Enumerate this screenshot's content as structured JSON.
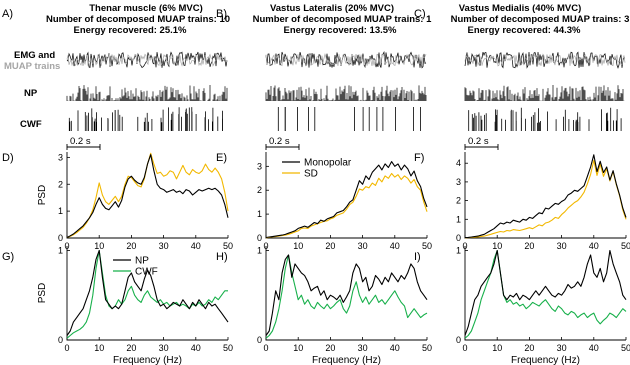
{
  "panel_letters": [
    "A)",
    "B)",
    "C)",
    "D)",
    "E)",
    "F)",
    "G)",
    "H)",
    "I)"
  ],
  "columns": [
    {
      "title": "Thenar muscle (6% MVC)",
      "trains": "Number of decomposed MUAP trains: 10",
      "energy": "Energy recovered: 25.1%"
    },
    {
      "title": "Vastus Lateralis (20% MVC)",
      "trains": "Number of decomposed MUAP trains: 1",
      "energy": "Energy recovered: 13.5%"
    },
    {
      "title": "Vastus Medialis (40% MVC)",
      "trains": "Number of decomposed MUAP trains: 3",
      "energy": "Energy recovered: 44.3%"
    }
  ],
  "row_labels": {
    "emg": "EMG and",
    "muap": "MUAP trains",
    "np": "NP",
    "cwf": "CWF"
  },
  "scale_bar_label": "0.2 s",
  "colors": {
    "black": "#000000",
    "grey": "#a6a6a6",
    "sd": "#f2b800",
    "cwf": "#18b04b"
  },
  "chart_data": [
    {
      "type": "line",
      "panel": "D)",
      "ylabel": "PSD",
      "xlabel": "",
      "xlim": [
        0,
        50
      ],
      "ylim": [
        0,
        3.2
      ],
      "yticks": [
        0,
        1,
        2,
        3
      ],
      "xticks": [
        0,
        10,
        20,
        30,
        40,
        50
      ],
      "x": [
        0,
        1,
        2,
        3,
        4,
        5,
        6,
        7,
        8,
        9,
        10,
        11,
        12,
        13,
        14,
        15,
        16,
        17,
        18,
        19,
        20,
        21,
        22,
        23,
        24,
        25,
        26,
        27,
        28,
        29,
        30,
        31,
        32,
        33,
        34,
        35,
        36,
        37,
        38,
        39,
        40,
        41,
        42,
        43,
        44,
        45,
        46,
        47,
        48,
        49,
        50
      ],
      "series": [
        {
          "name": "Monopolar",
          "color": "#000000",
          "values": [
            0.02,
            0.08,
            0.15,
            0.25,
            0.35,
            0.45,
            0.6,
            0.75,
            0.95,
            1.25,
            1.5,
            1.25,
            1.1,
            1.05,
            1.2,
            1.35,
            1.15,
            1.4,
            1.9,
            2.2,
            2.3,
            2.15,
            2.05,
            2.0,
            2.25,
            2.75,
            3.1,
            2.5,
            2.0,
            1.85,
            1.8,
            1.7,
            1.75,
            1.8,
            1.7,
            1.75,
            1.65,
            1.8,
            1.75,
            1.6,
            1.7,
            1.8,
            1.75,
            1.8,
            1.85,
            1.8,
            1.85,
            1.75,
            1.6,
            1.25,
            0.75
          ]
        },
        {
          "name": "SD",
          "color": "#f2b800",
          "values": [
            0.02,
            0.06,
            0.12,
            0.2,
            0.3,
            0.4,
            0.55,
            0.75,
            1.05,
            1.5,
            2.05,
            1.6,
            1.35,
            1.25,
            1.4,
            1.55,
            1.35,
            1.55,
            2.0,
            2.3,
            2.25,
            2.1,
            1.95,
            1.9,
            2.2,
            2.75,
            3.15,
            2.75,
            2.4,
            2.45,
            2.3,
            2.35,
            2.5,
            2.45,
            2.2,
            2.45,
            2.7,
            2.45,
            2.35,
            2.55,
            2.45,
            2.4,
            2.5,
            2.75,
            2.55,
            2.45,
            2.6,
            2.45,
            2.2,
            1.7,
            1.0
          ]
        }
      ]
    },
    {
      "type": "line",
      "panel": "E)",
      "ylabel": "",
      "xlabel": "",
      "xlim": [
        0,
        50
      ],
      "ylim": [
        0,
        3.6
      ],
      "yticks": [
        0,
        1,
        2,
        3
      ],
      "xticks": [
        0,
        10,
        20,
        30,
        40,
        50
      ],
      "legend": {
        "position": "top-left",
        "entries": [
          "Monopolar",
          "SD"
        ]
      },
      "x": [
        0,
        1,
        2,
        3,
        4,
        5,
        6,
        7,
        8,
        9,
        10,
        11,
        12,
        13,
        14,
        15,
        16,
        17,
        18,
        19,
        20,
        21,
        22,
        23,
        24,
        25,
        26,
        27,
        28,
        29,
        30,
        31,
        32,
        33,
        34,
        35,
        36,
        37,
        38,
        39,
        40,
        41,
        42,
        43,
        44,
        45,
        46,
        47,
        48,
        49,
        50
      ],
      "series": [
        {
          "name": "Monopolar",
          "color": "#000000",
          "values": [
            0.02,
            0.04,
            0.06,
            0.08,
            0.1,
            0.12,
            0.15,
            0.2,
            0.25,
            0.3,
            0.4,
            0.45,
            0.5,
            0.45,
            0.55,
            0.65,
            0.6,
            0.75,
            0.7,
            0.8,
            0.85,
            0.9,
            1.05,
            1.1,
            1.15,
            1.3,
            1.5,
            1.6,
            2.0,
            2.4,
            2.25,
            2.6,
            2.45,
            2.75,
            2.9,
            3.05,
            2.85,
            3.1,
            2.95,
            3.2,
            3.0,
            3.1,
            2.85,
            3.05,
            2.9,
            2.6,
            2.8,
            2.4,
            2.15,
            1.65,
            1.3
          ]
        },
        {
          "name": "SD",
          "color": "#f2b800",
          "values": [
            0.01,
            0.03,
            0.05,
            0.06,
            0.08,
            0.1,
            0.12,
            0.15,
            0.2,
            0.25,
            0.3,
            0.4,
            0.42,
            0.4,
            0.5,
            0.55,
            0.6,
            0.65,
            0.7,
            0.72,
            0.8,
            0.85,
            0.95,
            1.0,
            1.05,
            1.2,
            1.4,
            1.5,
            1.75,
            2.05,
            2.0,
            2.15,
            2.1,
            2.3,
            2.2,
            2.5,
            2.35,
            2.6,
            2.5,
            2.7,
            2.55,
            2.65,
            2.45,
            2.6,
            2.5,
            2.3,
            2.45,
            2.15,
            2.0,
            1.5,
            1.1
          ]
        }
      ]
    },
    {
      "type": "line",
      "panel": "F)",
      "ylabel": "",
      "xlabel": "",
      "xlim": [
        0,
        50
      ],
      "ylim": [
        0,
        4.6
      ],
      "yticks": [
        0,
        1,
        2,
        3,
        4
      ],
      "xticks": [
        0,
        10,
        20,
        30,
        40,
        50
      ],
      "x": [
        0,
        1,
        2,
        3,
        4,
        5,
        6,
        7,
        8,
        9,
        10,
        11,
        12,
        13,
        14,
        15,
        16,
        17,
        18,
        19,
        20,
        21,
        22,
        23,
        24,
        25,
        26,
        27,
        28,
        29,
        30,
        31,
        32,
        33,
        34,
        35,
        36,
        37,
        38,
        39,
        40,
        41,
        42,
        43,
        44,
        45,
        46,
        47,
        48,
        49,
        50
      ],
      "series": [
        {
          "name": "Monopolar",
          "color": "#000000",
          "values": [
            0.02,
            0.03,
            0.05,
            0.08,
            0.1,
            0.15,
            0.2,
            0.3,
            0.4,
            0.5,
            0.65,
            0.8,
            0.75,
            0.85,
            0.8,
            0.95,
            0.9,
            0.85,
            1.0,
            0.95,
            1.1,
            1.05,
            1.2,
            1.35,
            1.3,
            1.6,
            1.55,
            1.7,
            1.85,
            1.8,
            1.95,
            2.05,
            2.3,
            2.4,
            2.55,
            2.5,
            2.65,
            2.8,
            3.3,
            3.8,
            4.45,
            3.55,
            4.1,
            3.5,
            3.8,
            3.1,
            3.6,
            2.9,
            2.3,
            1.6,
            1.1
          ]
        },
        {
          "name": "SD",
          "color": "#f2b800",
          "values": [
            0.01,
            0.02,
            0.03,
            0.05,
            0.06,
            0.08,
            0.1,
            0.15,
            0.2,
            0.25,
            0.3,
            0.35,
            0.32,
            0.4,
            0.38,
            0.45,
            0.42,
            0.4,
            0.45,
            0.5,
            0.55,
            0.5,
            0.6,
            0.7,
            0.65,
            0.8,
            0.85,
            0.95,
            1.1,
            1.05,
            1.25,
            1.4,
            1.6,
            1.75,
            1.9,
            2.0,
            2.2,
            2.45,
            2.9,
            3.4,
            4.15,
            3.35,
            3.95,
            3.3,
            3.7,
            3.05,
            3.55,
            2.85,
            2.25,
            1.5,
            1.0
          ]
        }
      ]
    },
    {
      "type": "line",
      "panel": "G)",
      "ylabel": "PSD",
      "xlabel": "Frequency  (Hz)",
      "xlim": [
        0,
        50
      ],
      "ylim": [
        0,
        1.05
      ],
      "yticks": [
        0,
        1
      ],
      "xticks": [
        0,
        10,
        20,
        30,
        40,
        50
      ],
      "legend": {
        "position": "top-center",
        "entries": [
          "NP",
          "CWF"
        ]
      },
      "x": [
        0,
        1,
        2,
        3,
        4,
        5,
        6,
        7,
        8,
        9,
        10,
        11,
        12,
        13,
        14,
        15,
        16,
        17,
        18,
        19,
        20,
        21,
        22,
        23,
        24,
        25,
        26,
        27,
        28,
        29,
        30,
        31,
        32,
        33,
        34,
        35,
        36,
        37,
        38,
        39,
        40,
        41,
        42,
        43,
        44,
        45,
        46,
        47,
        48,
        49,
        50
      ],
      "series": [
        {
          "name": "NP",
          "color": "#000000",
          "values": [
            0.05,
            0.1,
            0.2,
            0.25,
            0.3,
            0.35,
            0.45,
            0.55,
            0.7,
            0.9,
            1.0,
            0.7,
            0.45,
            0.4,
            0.35,
            0.38,
            0.35,
            0.4,
            0.55,
            0.7,
            0.75,
            0.65,
            0.6,
            0.55,
            0.68,
            0.78,
            0.72,
            0.6,
            0.45,
            0.38,
            0.4,
            0.35,
            0.38,
            0.42,
            0.4,
            0.38,
            0.45,
            0.4,
            0.35,
            0.42,
            0.38,
            0.45,
            0.4,
            0.35,
            0.42,
            0.38,
            0.4,
            0.35,
            0.3,
            0.25,
            0.2
          ]
        },
        {
          "name": "CWF",
          "color": "#18b04b",
          "values": [
            0.02,
            0.05,
            0.08,
            0.1,
            0.12,
            0.15,
            0.2,
            0.3,
            0.5,
            0.8,
            1.0,
            0.75,
            0.5,
            0.38,
            0.35,
            0.38,
            0.45,
            0.4,
            0.45,
            0.55,
            0.6,
            0.5,
            0.45,
            0.42,
            0.5,
            0.55,
            0.48,
            0.45,
            0.42,
            0.45,
            0.4,
            0.42,
            0.38,
            0.4,
            0.42,
            0.38,
            0.4,
            0.38,
            0.35,
            0.4,
            0.38,
            0.42,
            0.38,
            0.4,
            0.45,
            0.42,
            0.48,
            0.45,
            0.5,
            0.55,
            0.55
          ]
        }
      ]
    },
    {
      "type": "line",
      "panel": "H)",
      "ylabel": "",
      "xlabel": "Frequency  (Hz)",
      "xlim": [
        0,
        50
      ],
      "ylim": [
        0,
        1.05
      ],
      "yticks": [
        0,
        1
      ],
      "xticks": [
        0,
        10,
        20,
        30,
        40,
        50
      ],
      "x": [
        0,
        1,
        2,
        3,
        4,
        5,
        6,
        7,
        8,
        9,
        10,
        11,
        12,
        13,
        14,
        15,
        16,
        17,
        18,
        19,
        20,
        21,
        22,
        23,
        24,
        25,
        26,
        27,
        28,
        29,
        30,
        31,
        32,
        33,
        34,
        35,
        36,
        37,
        38,
        39,
        40,
        41,
        42,
        43,
        44,
        45,
        46,
        47,
        48,
        49,
        50
      ],
      "series": [
        {
          "name": "NP",
          "color": "#000000",
          "values": [
            0.05,
            0.1,
            0.3,
            0.55,
            0.45,
            0.75,
            0.9,
            0.95,
            0.7,
            0.85,
            0.8,
            0.75,
            0.72,
            0.65,
            0.55,
            0.58,
            0.6,
            0.5,
            0.55,
            0.45,
            0.5,
            0.48,
            0.45,
            0.5,
            0.42,
            0.48,
            0.55,
            0.75,
            0.85,
            0.8,
            0.65,
            0.7,
            0.55,
            0.6,
            0.72,
            0.68,
            0.62,
            0.7,
            0.65,
            0.75,
            0.7,
            0.65,
            0.72,
            0.68,
            0.75,
            0.85,
            0.8,
            0.65,
            0.55,
            0.5,
            0.45
          ]
        },
        {
          "name": "CWF",
          "color": "#18b04b",
          "values": [
            0.02,
            0.05,
            0.1,
            0.2,
            0.35,
            0.55,
            0.8,
            0.95,
            0.75,
            0.6,
            0.45,
            0.5,
            0.4,
            0.45,
            0.38,
            0.35,
            0.42,
            0.38,
            0.35,
            0.4,
            0.35,
            0.38,
            0.42,
            0.45,
            0.35,
            0.3,
            0.38,
            0.55,
            0.65,
            0.5,
            0.42,
            0.48,
            0.4,
            0.45,
            0.5,
            0.42,
            0.45,
            0.4,
            0.45,
            0.5,
            0.55,
            0.48,
            0.42,
            0.38,
            0.25,
            0.3,
            0.35,
            0.3,
            0.25,
            0.28,
            0.3
          ]
        }
      ]
    },
    {
      "type": "line",
      "panel": "I)",
      "ylabel": "",
      "xlabel": "Frequency  (Hz)",
      "xlim": [
        0,
        50
      ],
      "ylim": [
        0,
        1.05
      ],
      "yticks": [
        0,
        1
      ],
      "xticks": [
        0,
        10,
        20,
        30,
        40,
        50
      ],
      "x": [
        0,
        1,
        2,
        3,
        4,
        5,
        6,
        7,
        8,
        9,
        10,
        11,
        12,
        13,
        14,
        15,
        16,
        17,
        18,
        19,
        20,
        21,
        22,
        23,
        24,
        25,
        26,
        27,
        28,
        29,
        30,
        31,
        32,
        33,
        34,
        35,
        36,
        37,
        38,
        39,
        40,
        41,
        42,
        43,
        44,
        45,
        46,
        47,
        48,
        49,
        50
      ],
      "series": [
        {
          "name": "NP",
          "color": "#000000",
          "values": [
            0.05,
            0.15,
            0.3,
            0.45,
            0.5,
            0.6,
            0.65,
            0.7,
            0.75,
            0.85,
            1.0,
            0.75,
            0.5,
            0.45,
            0.5,
            0.48,
            0.52,
            0.45,
            0.5,
            0.48,
            0.45,
            0.5,
            0.55,
            0.5,
            0.55,
            0.6,
            0.55,
            0.5,
            0.48,
            0.52,
            0.5,
            0.55,
            0.62,
            0.58,
            0.6,
            0.65,
            0.6,
            0.7,
            0.85,
            0.95,
            0.75,
            0.7,
            0.8,
            0.65,
            0.75,
            1.0,
            0.85,
            0.75,
            0.65,
            0.5,
            0.45
          ]
        },
        {
          "name": "CWF",
          "color": "#18b04b",
          "values": [
            0.02,
            0.05,
            0.1,
            0.2,
            0.3,
            0.45,
            0.55,
            0.65,
            0.75,
            0.9,
            1.0,
            0.75,
            0.5,
            0.42,
            0.45,
            0.4,
            0.42,
            0.38,
            0.4,
            0.35,
            0.38,
            0.42,
            0.4,
            0.38,
            0.42,
            0.45,
            0.4,
            0.35,
            0.32,
            0.38,
            0.35,
            0.3,
            0.28,
            0.32,
            0.3,
            0.25,
            0.28,
            0.3,
            0.25,
            0.28,
            0.3,
            0.22,
            0.18,
            0.22,
            0.25,
            0.3,
            0.28,
            0.25,
            0.3,
            0.35,
            0.32
          ]
        }
      ]
    }
  ]
}
